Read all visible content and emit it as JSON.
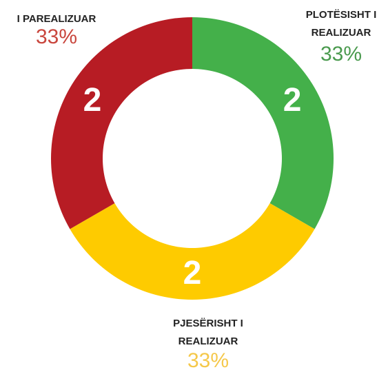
{
  "chart_data": {
    "type": "donut",
    "labels": [
      [
        "PLOTËSISHT I",
        "REALIZUAR"
      ],
      [
        "PJESËRISHT I",
        "REALIZUAR"
      ],
      [
        "I PAREALIZUAR"
      ]
    ],
    "values": [
      2,
      2,
      2
    ],
    "percent_labels": [
      "33%",
      "33%",
      "33%"
    ],
    "colors": [
      "#44b04a",
      "#fecb00",
      "#b71c24"
    ],
    "percent_colors": [
      "#4a9a4e",
      "#f5c84a",
      "#c9463d"
    ]
  }
}
